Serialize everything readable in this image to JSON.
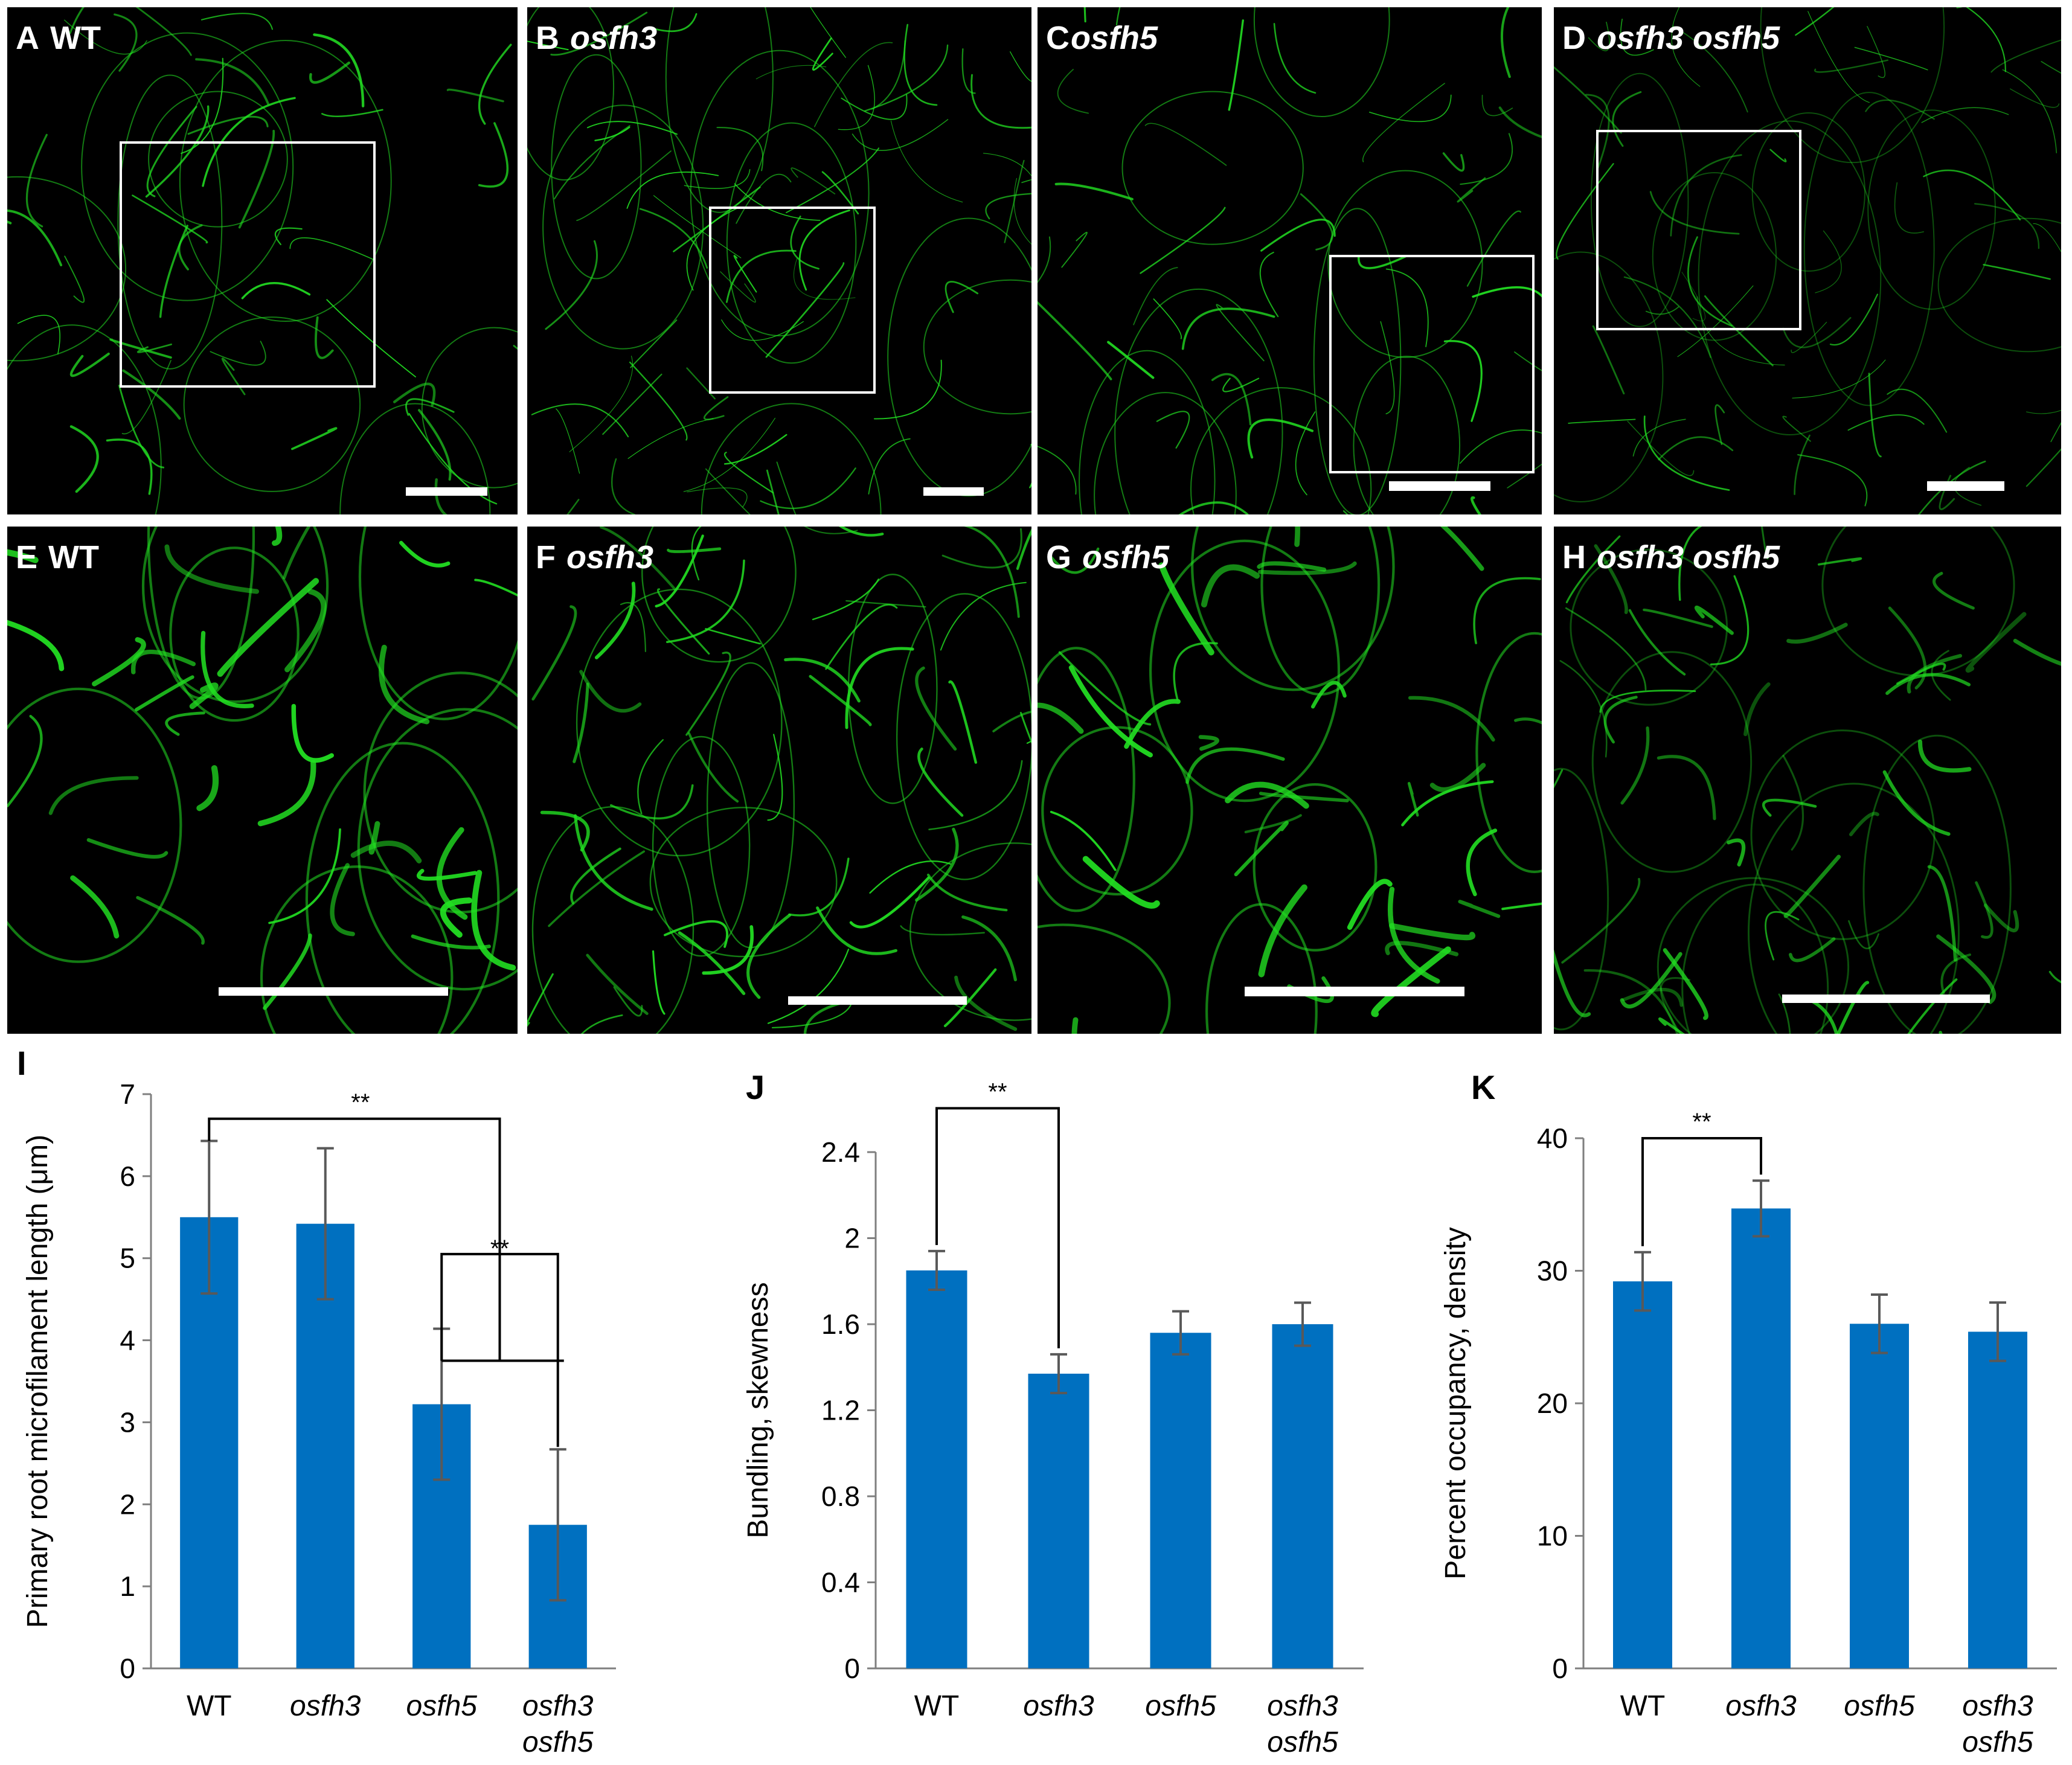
{
  "colors": {
    "bar": "#0070c0",
    "error_bar": "#595959",
    "filament": "#22e022",
    "background": "#000000",
    "roi_box": "#ffffff",
    "scale_bar": "#ffffff"
  },
  "panels": [
    {
      "letter": "A",
      "genotype": "WT",
      "italic": false
    },
    {
      "letter": "B",
      "genotype": "osfh3",
      "italic": true
    },
    {
      "letter": "C",
      "genotype": "osfh5",
      "italic": true
    },
    {
      "letter": "D",
      "genotype": "osfh3 osfh5",
      "italic": true
    },
    {
      "letter": "E",
      "genotype": "WT",
      "italic": false
    },
    {
      "letter": "F",
      "genotype": "osfh3",
      "italic": true
    },
    {
      "letter": "G",
      "genotype": "osfh5",
      "italic": true
    },
    {
      "letter": "H",
      "genotype": "osfh3 osfh5",
      "italic": true
    }
  ],
  "chart_data": [
    {
      "panel": "I",
      "type": "bar",
      "categories": [
        "WT",
        "osfh3",
        "osfh5",
        "osfh3 osfh5"
      ],
      "values": [
        5.5,
        5.42,
        3.22,
        1.75
      ],
      "errors": [
        0.93,
        0.92,
        0.92,
        0.92
      ],
      "ylabel": "Primary root microfilament length (μm)",
      "ylim": [
        0,
        7
      ],
      "yticks": [
        "0",
        "1",
        "2",
        "3",
        "4",
        "5",
        "6",
        "7"
      ],
      "significance": [
        {
          "label": "**",
          "between": [
            "WT",
            "osfh5 & osfh3 osfh5"
          ]
        },
        {
          "label": "**",
          "between": [
            "osfh5",
            "osfh3 osfh5"
          ]
        }
      ]
    },
    {
      "panel": "J",
      "type": "bar",
      "categories": [
        "WT",
        "osfh3",
        "osfh5",
        "osfh3 osfh5"
      ],
      "values": [
        1.85,
        1.37,
        1.56,
        1.6
      ],
      "errors": [
        0.09,
        0.09,
        0.1,
        0.1
      ],
      "ylabel": "Bundling, skewness",
      "ylim": [
        0,
        2.4
      ],
      "yticks": [
        "0",
        "0.4",
        "0.8",
        "1.2",
        "1.6",
        "2",
        "2.4"
      ],
      "significance": [
        {
          "label": "**",
          "between": [
            "WT",
            "osfh3"
          ]
        }
      ]
    },
    {
      "panel": "K",
      "type": "bar",
      "categories": [
        "WT",
        "osfh3",
        "osfh5",
        "osfh3 osfh5"
      ],
      "values": [
        29.2,
        34.7,
        26.0,
        25.4
      ],
      "errors": [
        2.2,
        2.1,
        2.2,
        2.2
      ],
      "ylabel": "Percent occupancy, density",
      "ylim": [
        0,
        40
      ],
      "yticks": [
        "0",
        "10",
        "20",
        "30",
        "40"
      ],
      "significance": [
        {
          "label": "**",
          "between": [
            "WT",
            "osfh3"
          ]
        }
      ]
    }
  ]
}
